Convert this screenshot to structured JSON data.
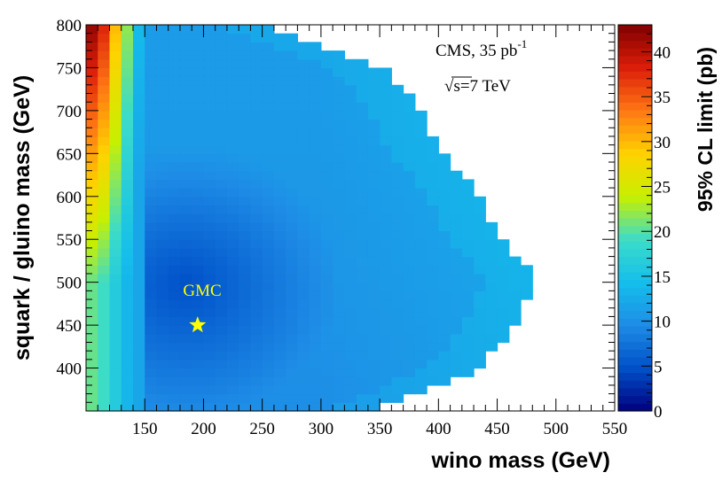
{
  "chart_data": {
    "type": "heatmap",
    "title": "",
    "xlabel": "wino mass (GeV)",
    "ylabel": "squark / gluino mass (GeV)",
    "zlabel": "95% CL limit (pb)",
    "xlim": [
      100,
      550
    ],
    "ylim": [
      350,
      800
    ],
    "zlim": [
      0,
      43
    ],
    "x_ticks": [
      "150",
      "200",
      "250",
      "300",
      "350",
      "400",
      "450",
      "500",
      "550"
    ],
    "y_ticks": [
      "400",
      "450",
      "500",
      "550",
      "600",
      "650",
      "700",
      "750",
      "800"
    ],
    "z_ticks": [
      "0",
      "5",
      "10",
      "15",
      "20",
      "25",
      "30",
      "35",
      "40"
    ],
    "grid": false,
    "colormap": [
      "#000080",
      "#0050c8",
      "#1e8ce6",
      "#14beeb",
      "#3cdcc8",
      "#c8f000",
      "#ffd200",
      "#ff7814",
      "#dc1e0a",
      "#800000"
    ],
    "cell_size_gev": [
      10,
      10
    ],
    "region_boundary": {
      "description": "wino mass must be below the squark/gluino mass",
      "max_wino_at_ymass": [
        [
          350,
          340
        ],
        [
          400,
          430
        ],
        [
          450,
          460
        ],
        [
          500,
          480
        ],
        [
          550,
          450
        ],
        [
          600,
          430
        ],
        [
          650,
          400
        ],
        [
          700,
          380
        ],
        [
          750,
          350
        ],
        [
          800,
          250
        ]
      ]
    },
    "z_model": {
      "column_high_values": [
        [
          100,
          42
        ],
        [
          110,
          38
        ],
        [
          120,
          30
        ],
        [
          130,
          22
        ],
        [
          140,
          14
        ]
      ],
      "plateau": "about 8-13 pb across most of the region, lowest near wino 150-200 GeV and squark/gluino 450-550 GeV"
    },
    "annotations": {
      "experiment": "CMS, 35 pb",
      "experiment_sup": "-1",
      "energy_root": "√",
      "energy": "s=7 TeV",
      "point_label": "GMC",
      "point": {
        "x": 195,
        "y": 450,
        "color": "#ffff00"
      }
    }
  }
}
